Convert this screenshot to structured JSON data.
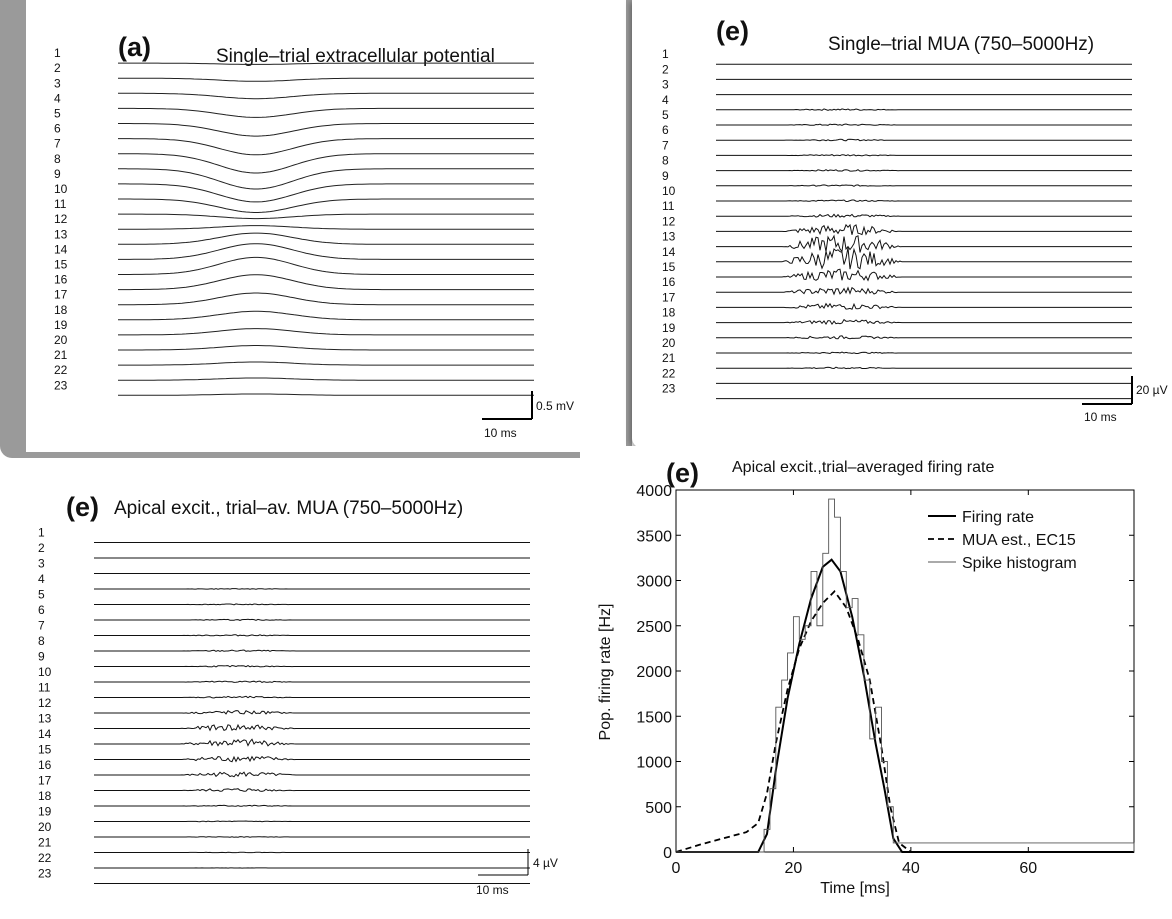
{
  "chart_data": [
    {
      "type": "line",
      "panel_letter": "(a)",
      "title": "Single–trial extracellular potential",
      "channels": [
        "1",
        "2",
        "3",
        "4",
        "5",
        "6",
        "7",
        "8",
        "9",
        "10",
        "11",
        "12",
        "13",
        "14",
        "15",
        "16",
        "17",
        "18",
        "19",
        "20",
        "21",
        "22",
        "23"
      ],
      "amplitudes_mV": [
        -0.03,
        -0.07,
        -0.12,
        -0.2,
        -0.28,
        -0.36,
        -0.43,
        -0.45,
        -0.4,
        -0.3,
        -0.1,
        0.08,
        0.25,
        0.35,
        0.38,
        0.33,
        0.26,
        0.19,
        0.14,
        0.1,
        0.07,
        0.05,
        0.03
      ],
      "scalebar_time": "10 ms",
      "scalebar_amp": "0.5 mV"
    },
    {
      "type": "line",
      "panel_letter": "(e)",
      "title": "Single–trial MUA (750–5000Hz)",
      "channels": [
        "1",
        "2",
        "3",
        "4",
        "5",
        "6",
        "7",
        "8",
        "9",
        "10",
        "11",
        "12",
        "13",
        "14",
        "15",
        "16",
        "17",
        "18",
        "19",
        "20",
        "21",
        "22",
        "23"
      ],
      "peak_amplitudes_uV": [
        0,
        0,
        0,
        1,
        1,
        1,
        1,
        1,
        1,
        1,
        2,
        7,
        12,
        14,
        8,
        5,
        4,
        3,
        2,
        1,
        1,
        0,
        0
      ],
      "scalebar_time": "10 ms",
      "scalebar_amp": "20 µV"
    },
    {
      "type": "line",
      "panel_letter": "(e)",
      "title": "Apical excit., trial–av. MUA (750–5000Hz)",
      "channels": [
        "1",
        "2",
        "3",
        "4",
        "5",
        "6",
        "7",
        "8",
        "9",
        "10",
        "11",
        "12",
        "13",
        "14",
        "15",
        "16",
        "17",
        "18",
        "19",
        "20",
        "21",
        "22",
        "23"
      ],
      "peak_amplitudes_uV": [
        0,
        0,
        0,
        0.3,
        0.4,
        0.5,
        0.6,
        0.7,
        0.7,
        0.8,
        0.9,
        1.8,
        3.2,
        3.6,
        3.0,
        2.4,
        1.6,
        0.6,
        0.4,
        0.3,
        0.2,
        0.1,
        0
      ],
      "scalebar_time": "10 ms",
      "scalebar_amp": "4 µV"
    },
    {
      "type": "line",
      "panel_letter": "(e)",
      "title": "Apical excit.,trial–averaged firing rate",
      "xlabel": "Time [ms]",
      "ylabel": "Pop. firing rate [Hz]",
      "xlim": [
        0,
        78
      ],
      "ylim": [
        0,
        4000
      ],
      "xticks": [
        "0",
        "20",
        "40",
        "60"
      ],
      "yticks": [
        "0",
        "500",
        "1000",
        "1500",
        "2000",
        "2500",
        "3000",
        "3500",
        "4000"
      ],
      "legend_position": "top-right",
      "series": [
        {
          "name": "Firing rate",
          "style": "solid",
          "x": [
            0,
            14,
            15.5,
            17,
            19,
            21,
            23,
            25,
            26.5,
            28,
            30,
            32,
            34,
            35.5,
            37,
            38.5,
            78
          ],
          "y": [
            0,
            0,
            200,
            900,
            1700,
            2300,
            2800,
            3150,
            3230,
            3100,
            2600,
            1950,
            1200,
            700,
            150,
            0,
            0
          ]
        },
        {
          "name": "MUA est., EC15",
          "style": "dashed",
          "x": [
            0,
            4,
            8,
            12,
            14,
            15.5,
            17,
            19,
            21,
            23,
            25,
            27,
            29,
            31,
            33,
            35,
            36.5,
            38,
            40,
            78
          ],
          "y": [
            0,
            80,
            150,
            220,
            320,
            650,
            1200,
            1800,
            2250,
            2550,
            2750,
            2880,
            2700,
            2350,
            1900,
            1150,
            500,
            100,
            0,
            0
          ]
        },
        {
          "name": "Spike histogram",
          "style": "thin",
          "x": [
            0,
            15,
            16,
            17,
            18,
            19,
            20,
            21,
            22,
            23,
            24,
            25,
            26,
            27,
            28,
            29,
            30,
            31,
            32,
            33,
            34,
            35,
            36,
            37,
            78
          ],
          "y": [
            0,
            250,
            700,
            1600,
            1900,
            2200,
            2600,
            2350,
            2500,
            3100,
            2500,
            3300,
            3900,
            3700,
            3100,
            2700,
            2800,
            2400,
            1900,
            1250,
            1600,
            1000,
            500,
            100,
            0
          ]
        }
      ]
    }
  ]
}
